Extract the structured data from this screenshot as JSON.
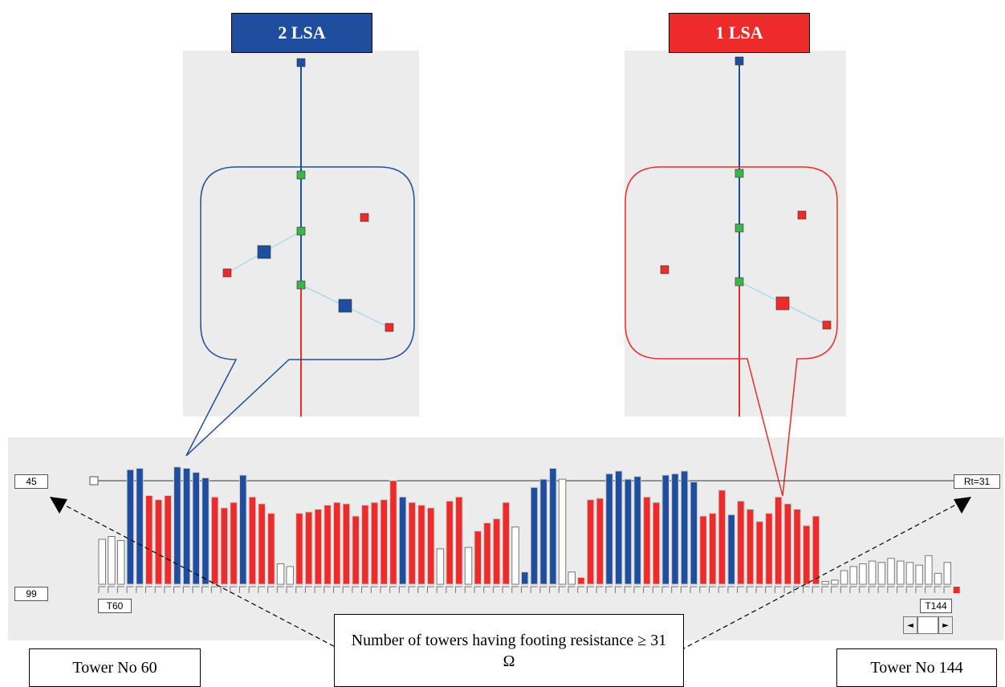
{
  "labels": {
    "lsa_left": "2 LSA",
    "lsa_right": "1 LSA",
    "axis_max": "45",
    "axis_min": "99",
    "tower_start_tag": "T60",
    "tower_end_tag": "T144",
    "threshold_tag": "Rt=31",
    "tower_start_caption": "Tower No 60",
    "tower_end_caption": "Tower No 144",
    "count_caption": "Number of towers having footing resistance ≥ 31 Ω"
  },
  "scrollbar": {
    "left_arrow": "◄",
    "right_arrow": "►"
  },
  "colors": {
    "two_lsa": "#1f4e9e",
    "one_lsa": "#ee2b2b",
    "no_lsa": "#ffffff",
    "panel": "#ececec",
    "green_node": "#3cb44b"
  },
  "chart_data": {
    "type": "bar",
    "legend": [
      {
        "name": "2 LSA",
        "color": "#1f4e9e"
      },
      {
        "name": "1 LSA",
        "color": "#ee2b2b"
      }
    ],
    "threshold": 31,
    "x_range": [
      "T60",
      "T144"
    ],
    "series_colors": [
      "W",
      "W",
      "W",
      "B",
      "B",
      "R",
      "R",
      "R",
      "B",
      "B",
      "B",
      "B",
      "R",
      "R",
      "R",
      "B",
      "R",
      "R",
      "R",
      "W",
      "W",
      "R",
      "R",
      "R",
      "R",
      "R",
      "R",
      "R",
      "R",
      "R",
      "R",
      "R",
      "B",
      "R",
      "R",
      "R",
      "W",
      "R",
      "R",
      "W",
      "R",
      "R",
      "R",
      "R",
      "W",
      "B",
      "B",
      "B",
      "B",
      "W",
      "W",
      "R",
      "R",
      "R",
      "B",
      "B",
      "B",
      "B",
      "R",
      "R",
      "B",
      "B",
      "B",
      "B",
      "R",
      "R",
      "R",
      "B",
      "R",
      "R",
      "R",
      "R",
      "R",
      "R",
      "R",
      "R",
      "R",
      "W",
      "W",
      "W",
      "W",
      "W",
      "W",
      "W",
      "W",
      "W",
      "W",
      "W",
      "W",
      "W",
      "W"
    ],
    "bar_heights": [
      0.33,
      0.35,
      0.32,
      0.84,
      0.85,
      0.65,
      0.62,
      0.65,
      0.86,
      0.85,
      0.82,
      0.78,
      0.64,
      0.56,
      0.6,
      0.8,
      0.64,
      0.59,
      0.52,
      0.15,
      0.13,
      0.52,
      0.53,
      0.55,
      0.58,
      0.6,
      0.59,
      0.5,
      0.58,
      0.6,
      0.62,
      0.76,
      0.64,
      0.6,
      0.58,
      0.56,
      0.26,
      0.61,
      0.64,
      0.27,
      0.39,
      0.45,
      0.48,
      0.6,
      0.42,
      0.09,
      0.71,
      0.77,
      0.85,
      0.77,
      0.09,
      0.05,
      0.62,
      0.63,
      0.81,
      0.83,
      0.77,
      0.79,
      0.64,
      0.6,
      0.8,
      0.81,
      0.83,
      0.75,
      0.5,
      0.52,
      0.69,
      0.51,
      0.61,
      0.55,
      0.46,
      0.52,
      0.64,
      0.59,
      0.55,
      0.43,
      0.5,
      0.02,
      0.03,
      0.1,
      0.13,
      0.15,
      0.17,
      0.16,
      0.19,
      0.17,
      0.16,
      0.14,
      0.21,
      0.08,
      0.16
    ]
  }
}
